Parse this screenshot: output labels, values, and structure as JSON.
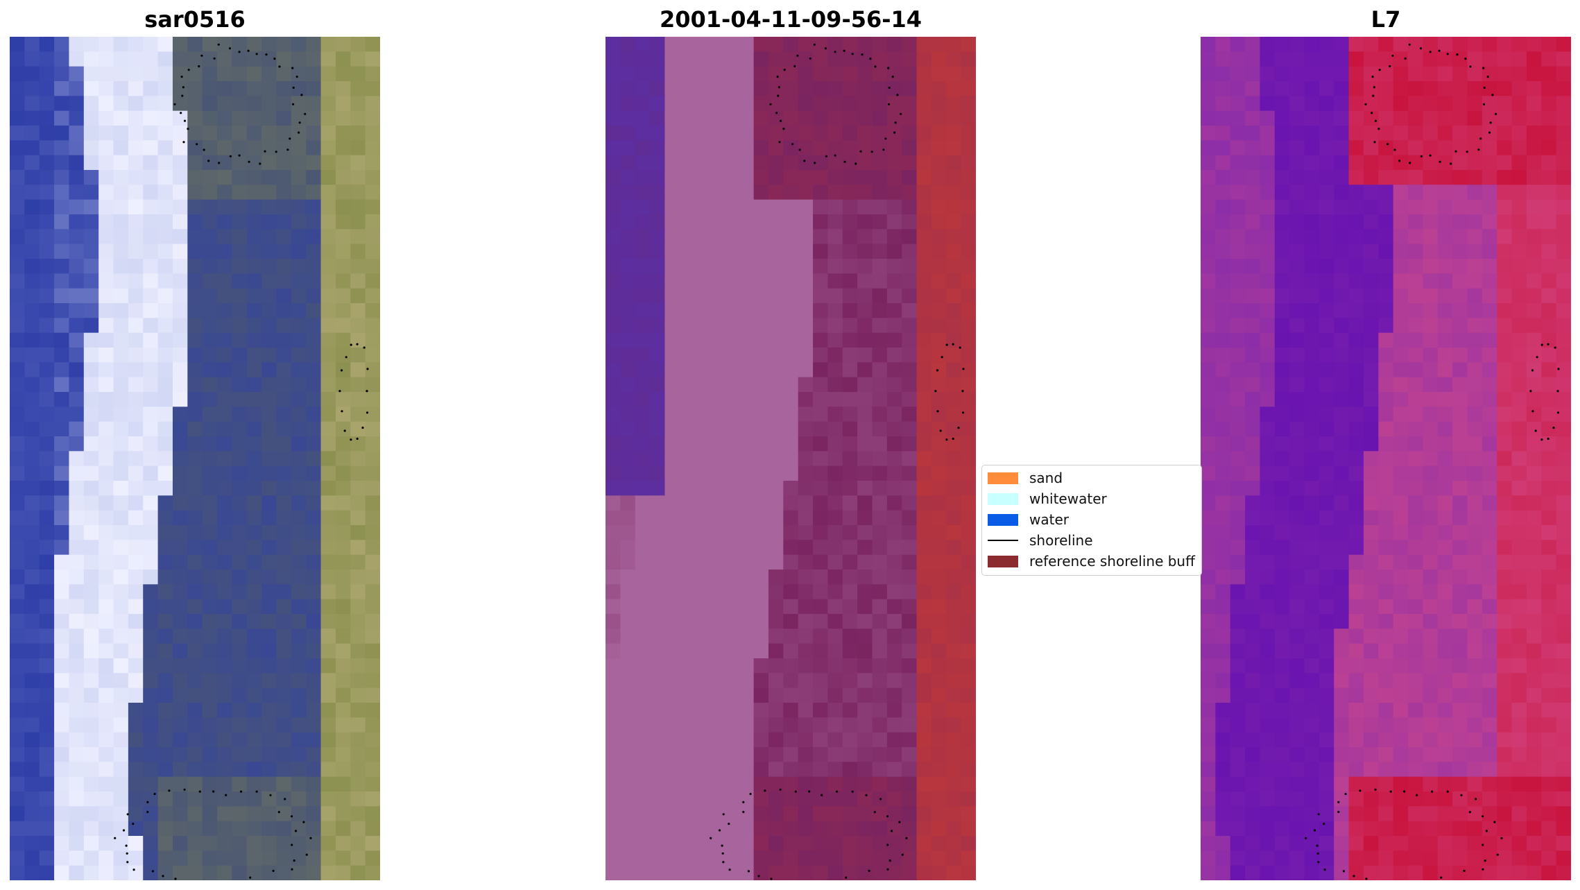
{
  "panels": [
    {
      "title": "sar0516",
      "kind": "rgb-composite"
    },
    {
      "title": "2001-04-11-09-56-14",
      "kind": "classified"
    },
    {
      "title": "L7",
      "kind": "index"
    }
  ],
  "legend": {
    "items": [
      {
        "label": "sand",
        "color": "#ff8c3a",
        "type": "patch"
      },
      {
        "label": "whitewater",
        "color": "#c8ffff",
        "type": "patch"
      },
      {
        "label": "water",
        "color": "#0a5ce6",
        "type": "patch"
      },
      {
        "label": "shoreline",
        "color": "#000000",
        "type": "line"
      },
      {
        "label": "reference shoreline buff",
        "color": "#8b2a2f",
        "type": "patch"
      }
    ]
  },
  "colors": {
    "panel1": [
      "#2f3fa8",
      "#b7bfea",
      "#eef0ff",
      "#4a5674",
      "#8c9050",
      "#a8a46c"
    ],
    "panel2": [
      "#5c2ea0",
      "#a8649c",
      "#7a2460",
      "#b8363e"
    ],
    "panel3": [
      "#6a14b0",
      "#d44a88",
      "#c8143e",
      "#8c2ea8"
    ]
  }
}
